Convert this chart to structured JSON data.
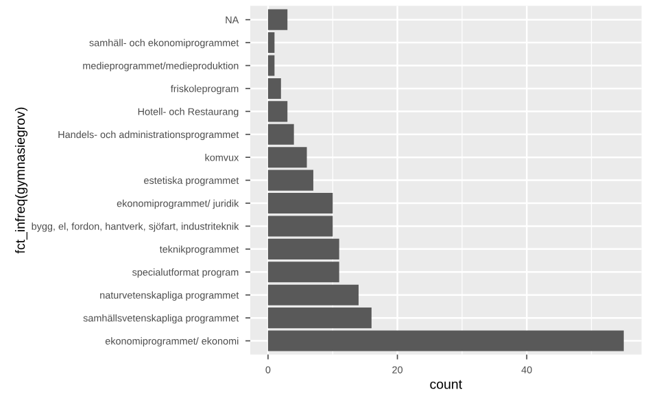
{
  "chart_data": {
    "type": "bar",
    "orientation": "horizontal",
    "xlabel": "count",
    "ylabel": "fct_infreq(gymnasiegrov)",
    "categories": [
      "NA",
      "samhäll- och ekonomiprogrammet",
      "medieprogrammet/medieproduktion",
      "friskoleprogram",
      "Hotell- och Restaurang",
      "Handels- och administrationsprogrammet",
      "komvux",
      "estetiska programmet",
      "ekonomiprogrammet/ juridik",
      "bygg, el, fordon, hantverk, sjöfart, industriteknik",
      "teknikprogrammet",
      "specialutformat program",
      "naturvetenskapliga programmet",
      "samhällsvetenskapliga programmet",
      "ekonomiprogrammet/ ekonomi"
    ],
    "values": [
      3,
      1,
      1,
      2,
      3,
      4,
      6,
      7,
      10,
      10,
      11,
      11,
      14,
      16,
      55
    ],
    "color": "#595959",
    "xlim": [
      -2.75,
      57.75
    ],
    "xticks": [
      0,
      20,
      40
    ],
    "grid": true
  }
}
